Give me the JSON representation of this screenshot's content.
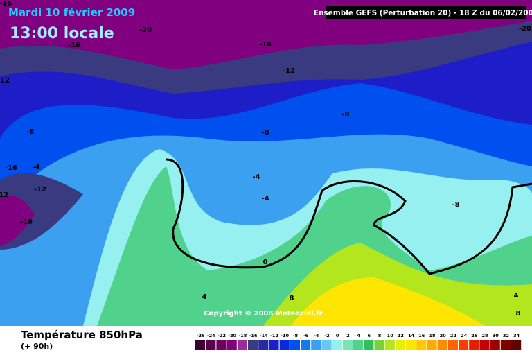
{
  "header": {
    "date": "Mardi 10 février 2009",
    "time": "13:00 locale",
    "model": "Ensemble GEFS (Perturbation 20)  -  18 Z du 06/02/2009"
  },
  "copyright": "Copyright © 2008 Meteociel.fr",
  "footer": {
    "title": "Température 850hPa",
    "lead": "(+ 90h)"
  },
  "legend": {
    "labels": [
      "-26",
      "-24",
      "-22",
      "-20",
      "-18",
      "-16",
      "-14",
      "-12",
      "-10",
      "-8",
      "-6",
      "-4",
      "-2",
      "0",
      "2",
      "4",
      "6",
      "8",
      "10",
      "12",
      "14",
      "16",
      "18",
      "20",
      "22",
      "24",
      "26",
      "28",
      "30",
      "32",
      "34"
    ],
    "colors": [
      "#3a0030",
      "#5a0050",
      "#700060",
      "#800080",
      "#9b2c9b",
      "#3a3a80",
      "#2828a0",
      "#1e1ec8",
      "#0a28e0",
      "#0050f0",
      "#1478f0",
      "#3ca0f0",
      "#64c8f8",
      "#96f0f0",
      "#78e6b4",
      "#50d28c",
      "#32be5a",
      "#78d23c",
      "#b4e61e",
      "#e6f000",
      "#ffe600",
      "#ffc800",
      "#ffaa00",
      "#ff8c00",
      "#ff6400",
      "#ff3c00",
      "#e61e00",
      "#c80000",
      "#a00000",
      "#800000",
      "#600000"
    ]
  },
  "contour_labels": [
    "-16",
    "-20",
    "-20",
    "-16",
    "-16",
    "-12",
    "-12",
    "-8",
    "-8",
    "-8",
    "-16",
    "-4",
    "-12",
    "-12",
    "-16",
    "-4",
    "-4",
    "-8",
    "0",
    "4",
    "8",
    "4",
    "8"
  ]
}
